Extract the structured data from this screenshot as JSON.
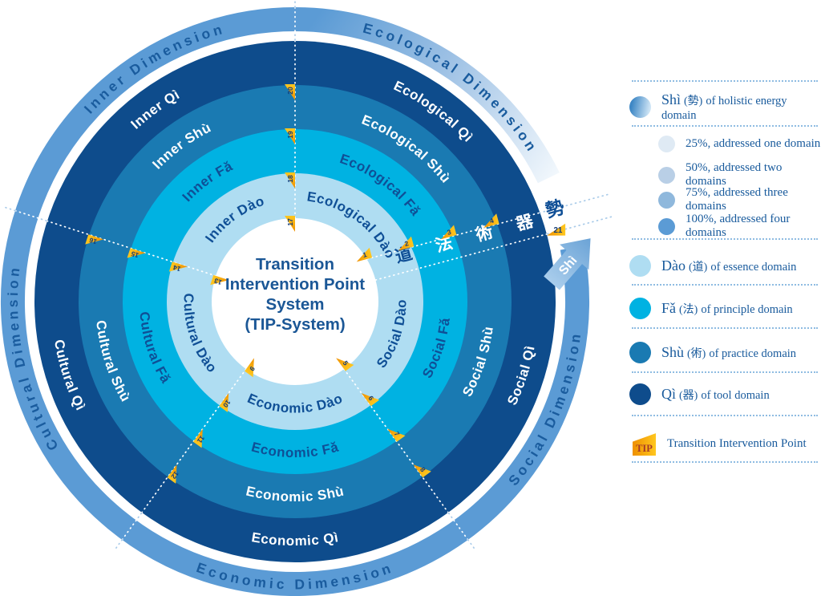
{
  "title_lines": [
    "Transition",
    "Intervention Point",
    "System",
    "(TIP-System)"
  ],
  "colors": {
    "dao": "#afddf2",
    "fa": "#00b2e2",
    "shu": "#1a7ab2",
    "qi": "#0e4c8c",
    "dimension": "#5b9bd5",
    "navy_text": "#0f4f96",
    "dim_text": "#1a5c9e",
    "title_text": "#1b5796",
    "tip_yellow_dark": "#ef9000",
    "tip_yellow": "#ffc71f",
    "tip_number": "#123c78",
    "dotted_outer": "#a9cbe9",
    "legend_text": "#185a9c",
    "pct25": "#dfeaf4",
    "pct50": "#b9cfe6",
    "pct75": "#8fb8dc",
    "pct100": "#5b9bd5"
  },
  "sectors": [
    {
      "name": "Inner",
      "dimension_label": "Inner Dimension",
      "labels": [
        "Inner Dào",
        "Inner Fǎ",
        "Inner Shù",
        "Inner Qì"
      ]
    },
    {
      "name": "Ecological",
      "dimension_label": "Ecological Dimension",
      "labels": [
        "Ecological Dào",
        "Ecological Fǎ",
        "Ecological Shù",
        "Ecological Qì"
      ]
    },
    {
      "name": "Social",
      "dimension_label": "Social Dimension",
      "labels": [
        "Social Dào",
        "Social Fǎ",
        "Social Shù",
        "Social Qì"
      ]
    },
    {
      "name": "Economic",
      "dimension_label": "Economic Dimension",
      "labels": [
        "Economic Dào",
        "Economic Fǎ",
        "Economic Shù",
        "Economic Qì"
      ]
    },
    {
      "name": "Cultural",
      "dimension_label": "Cultural Dimension",
      "labels": [
        "Cultural Dào",
        "Cultural Fǎ",
        "Cultural Shù",
        "Cultural Qì"
      ]
    }
  ],
  "axis_chars": [
    "道",
    "法",
    "術",
    "器",
    "勢"
  ],
  "tip_groups": {
    "right": [
      "1",
      "2",
      "3",
      "4"
    ],
    "lower_right": [
      "5",
      "6",
      "7",
      "8"
    ],
    "lower_left": [
      "9",
      "10",
      "11",
      "12"
    ],
    "left": [
      "13",
      "14",
      "15",
      "16"
    ],
    "top": [
      "17",
      "18",
      "19",
      "20"
    ]
  },
  "shi_arrow": {
    "label": "Shì",
    "tip_number": "21"
  },
  "legend": {
    "shi": {
      "pinyin": "Shì",
      "cjk": "(勢)",
      "desc": "of holistic energy domain"
    },
    "percents": [
      {
        "label": "25%, addressed one domain"
      },
      {
        "label": "50%, addressed two domains"
      },
      {
        "label": "75%, addressed three domains"
      },
      {
        "label": "100%, addressed four domains"
      }
    ],
    "domains": [
      {
        "pinyin": "Dào",
        "cjk": "(道)",
        "desc": "of essence domain"
      },
      {
        "pinyin": "Fǎ",
        "cjk": "(法)",
        "desc": "of principle domain"
      },
      {
        "pinyin": "Shù",
        "cjk": "(術)",
        "desc": "of practice domain"
      },
      {
        "pinyin": "Qì",
        "cjk": "(器)",
        "desc": "of tool domain"
      }
    ],
    "tip": {
      "badge": "TIP",
      "label": "Transition Intervention Point"
    }
  }
}
